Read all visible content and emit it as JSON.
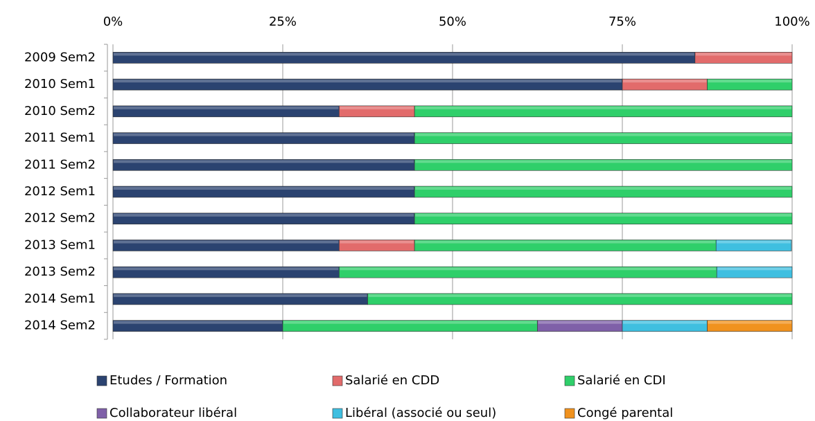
{
  "chart_data": {
    "type": "stacked_barh",
    "categories": [
      "2009 Sem2",
      "2010 Sem1",
      "2010 Sem2",
      "2011 Sem1",
      "2011 Sem2",
      "2012 Sem1",
      "2012 Sem2",
      "2013 Sem1",
      "2013 Sem2",
      "2014 Sem1",
      "2014 Sem2"
    ],
    "series": [
      {
        "name": "Etudes / Formation",
        "color": "#2b4370",
        "values": [
          85.7,
          75,
          33.3,
          44.4,
          44.4,
          44.4,
          44.4,
          33.3,
          33.3,
          37.5,
          25
        ]
      },
      {
        "name": "Salarié en CDD",
        "color": "#e26b6b",
        "values": [
          14.3,
          12.5,
          11.1,
          null,
          null,
          null,
          null,
          11.1,
          null,
          null,
          null
        ]
      },
      {
        "name": "Salarié en CDI",
        "color": "#2fcf6a",
        "values": [
          null,
          12.5,
          55.6,
          55.6,
          55.6,
          55.6,
          55.6,
          44.4,
          55.6,
          62.5,
          37.5
        ]
      },
      {
        "name": "Collaborateur libéral",
        "color": "#7f60a8",
        "values": [
          null,
          null,
          null,
          null,
          null,
          null,
          null,
          null,
          null,
          null,
          12.5
        ]
      },
      {
        "name": "Libéral (associé ou seul)",
        "color": "#3fbfe0",
        "values": [
          null,
          null,
          null,
          null,
          null,
          null,
          null,
          11.1,
          11.1,
          null,
          12.5
        ]
      },
      {
        "name": "Congé parental",
        "color": "#f0921e",
        "values": [
          null,
          null,
          null,
          null,
          null,
          null,
          null,
          null,
          null,
          null,
          12.5
        ]
      }
    ],
    "xlim": [
      0,
      100
    ],
    "xticks": [
      {
        "value": 0,
        "label": "0%"
      },
      {
        "value": 25,
        "label": "25%"
      },
      {
        "value": 50,
        "label": "50%"
      },
      {
        "value": 75,
        "label": "75%"
      },
      {
        "value": 100,
        "label": "100%"
      }
    ],
    "grid": true,
    "legend": "bottom"
  }
}
